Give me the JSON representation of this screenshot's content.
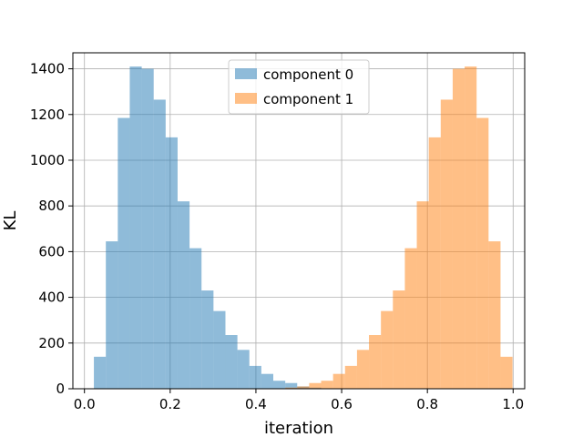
{
  "chart_data": {
    "type": "bar",
    "subtype": "histogram",
    "xlabel": "iteration",
    "ylabel": "KL",
    "xlim": [
      -0.027,
      1.027
    ],
    "ylim": [
      0,
      1470
    ],
    "xticks": [
      0.0,
      0.2,
      0.4,
      0.6,
      0.8,
      1.0
    ],
    "xtick_labels": [
      "0.0",
      "0.2",
      "0.4",
      "0.6",
      "0.8",
      "1.0"
    ],
    "yticks": [
      0,
      200,
      400,
      600,
      800,
      1000,
      1200,
      1400
    ],
    "ytick_labels": [
      "0",
      "200",
      "400",
      "600",
      "800",
      "1000",
      "1200",
      "1400"
    ],
    "grid": true,
    "legend_position": "top-center",
    "bin_width": 0.0279,
    "series": [
      {
        "name": "component 0",
        "color": "#1f77b4",
        "opacity": 0.5,
        "bin_start": 0.022,
        "values": [
          140,
          645,
          1185,
          1410,
          1400,
          1265,
          1100,
          820,
          615,
          430,
          340,
          235,
          170,
          100,
          65,
          35,
          25,
          10,
          5,
          2,
          1,
          0,
          0,
          0,
          0,
          0,
          0,
          0,
          0,
          0,
          0,
          0,
          0,
          0
        ]
      },
      {
        "name": "component 1",
        "color": "#ff7f0e",
        "opacity": 0.5,
        "bin_start": 0.022,
        "values": [
          0,
          0,
          0,
          0,
          0,
          0,
          0,
          0,
          0,
          0,
          0,
          0,
          0,
          0,
          0,
          2,
          5,
          10,
          25,
          35,
          65,
          100,
          170,
          235,
          340,
          430,
          615,
          820,
          1100,
          1265,
          1400,
          1410,
          1185,
          645,
          140
        ]
      }
    ]
  }
}
